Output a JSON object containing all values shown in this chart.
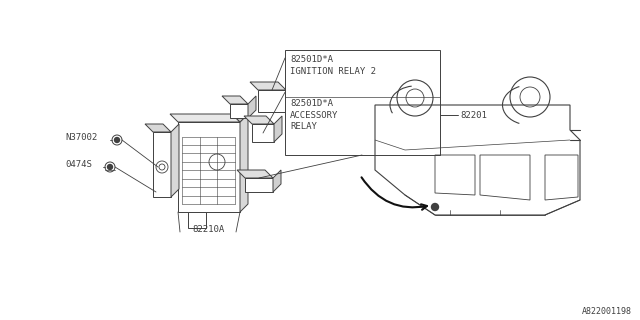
{
  "bg_color": "#ffffff",
  "line_color": "#404040",
  "text_color": "#404040",
  "part_number_bottom": "A822001198",
  "labels": {
    "ignition_relay_part": "82501D*A",
    "ignition_relay_name": "IGNITION RELAY 2",
    "accessory_relay_part": "82501D*A",
    "accessory_relay_name1": "ACCESSORY",
    "accessory_relay_name2": "RELAY",
    "fuse_box": "82210A",
    "bolt": "N37002",
    "screw": "0474S",
    "connector": "82201"
  },
  "figsize": [
    6.4,
    3.2
  ],
  "dpi": 100
}
